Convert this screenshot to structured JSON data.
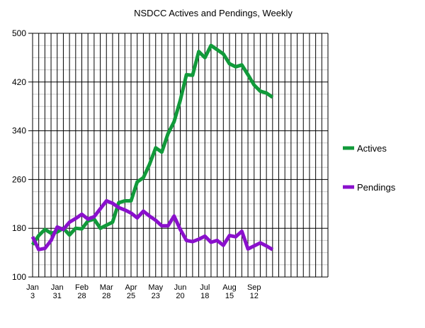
{
  "chart_data": {
    "type": "line",
    "title": "NSDCC Actives and Pendings, Weekly",
    "ylim": [
      100,
      500
    ],
    "yticks": [
      100,
      180,
      260,
      340,
      420,
      500
    ],
    "grid": true,
    "legend_position": "right",
    "xtick_labels": [
      {
        "line1": "Jan",
        "line2": "3",
        "week": 0
      },
      {
        "line1": "Jan",
        "line2": "31",
        "week": 4
      },
      {
        "line1": "Feb",
        "line2": "28",
        "week": 8
      },
      {
        "line1": "Mar",
        "line2": "28",
        "week": 12
      },
      {
        "line1": "Apr",
        "line2": "25",
        "week": 16
      },
      {
        "line1": "May",
        "line2": "23",
        "week": 20
      },
      {
        "line1": "Jun",
        "line2": "20",
        "week": 24
      },
      {
        "line1": "Jul",
        "line2": "18",
        "week": 28
      },
      {
        "line1": "Aug",
        "line2": "15",
        "week": 32
      },
      {
        "line1": "Sep",
        "line2": "12",
        "week": 36
      }
    ],
    "week_count": 49,
    "series": [
      {
        "name": "Actives",
        "color": "#119a3a",
        "values": [
          153,
          168,
          178,
          172,
          174,
          180,
          169,
          180,
          179,
          192,
          195,
          180,
          185,
          190,
          222,
          225,
          225,
          256,
          263,
          285,
          312,
          305,
          335,
          355,
          390,
          432,
          431,
          470,
          460,
          480,
          473,
          466,
          450,
          445,
          448,
          432,
          415,
          405,
          402,
          395
        ]
      },
      {
        "name": "Pendings",
        "color": "#8a10cc",
        "values": [
          166,
          145,
          147,
          160,
          182,
          178,
          190,
          196,
          203,
          195,
          199,
          212,
          225,
          221,
          214,
          210,
          205,
          197,
          208,
          200,
          193,
          184,
          184,
          200,
          178,
          160,
          158,
          162,
          167,
          157,
          160,
          152,
          168,
          166,
          175,
          146,
          151,
          156,
          151,
          145
        ]
      }
    ]
  }
}
